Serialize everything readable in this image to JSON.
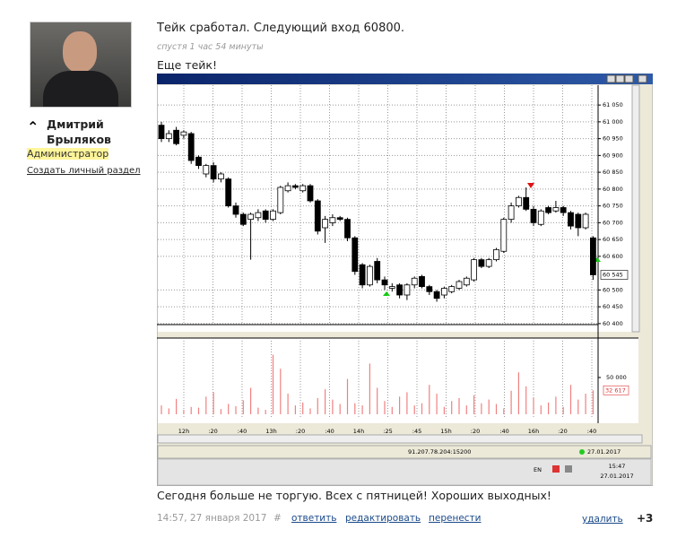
{
  "author": {
    "name": "Дмитрий Брыляков",
    "role": "Администратор",
    "link": "Создать личный раздел"
  },
  "post": {
    "title": "Тейк сработал. Следующий вход 60800.",
    "time_ago": "спустя 1 час 54 минуты",
    "text": "Еще тейк!",
    "text2": "Сегодня больше не торгую. Всех с пятницей! Хороших выходных!",
    "footer": {
      "date": "14:57, 27 января 2017",
      "anchor": "#",
      "reply": "ответить",
      "edit": "редактировать",
      "move": "перенести",
      "delete": "удалить",
      "rating": "+3"
    }
  },
  "chart_data": {
    "type": "candlestick",
    "open": [
      60990,
      60950,
      60975,
      60960,
      60965,
      60895,
      60845,
      60870,
      60830,
      60830,
      60750,
      60725,
      60710,
      60715,
      60735,
      60710,
      60730,
      60795,
      60810,
      60795,
      60810,
      60765,
      60685,
      60700,
      60715,
      60710,
      60655,
      60575,
      60515,
      60585,
      60530,
      60505,
      60515,
      60485,
      60515,
      60540,
      60510,
      60495,
      60485,
      60495,
      60505,
      60515,
      60530,
      60590,
      60570,
      60590,
      60615,
      60710,
      60750,
      60775,
      60740,
      60695,
      60745,
      60735,
      60745,
      60730,
      60725,
      60685,
      60655
    ],
    "high": [
      61000,
      60975,
      60985,
      60975,
      60970,
      60900,
      60875,
      60880,
      60850,
      60835,
      60760,
      60730,
      60730,
      60740,
      60740,
      60740,
      60810,
      60820,
      60815,
      60815,
      60815,
      60770,
      60720,
      60725,
      60720,
      60715,
      60660,
      60580,
      60575,
      60595,
      60540,
      60520,
      60520,
      60520,
      60540,
      60545,
      60515,
      60500,
      60510,
      60515,
      60530,
      60540,
      60595,
      60595,
      60595,
      60625,
      60715,
      60760,
      60780,
      60805,
      60750,
      60740,
      60750,
      60765,
      60750,
      60735,
      60730,
      60730,
      60660
    ],
    "low": [
      60940,
      60940,
      60930,
      60950,
      60875,
      60860,
      60835,
      60820,
      60820,
      60745,
      60715,
      60690,
      60590,
      60705,
      60700,
      60705,
      60725,
      60790,
      60800,
      60790,
      60760,
      60665,
      60640,
      60690,
      60705,
      60645,
      60545,
      60505,
      60510,
      60520,
      60500,
      60495,
      60475,
      60470,
      60505,
      60505,
      60485,
      60465,
      60475,
      60490,
      60500,
      60510,
      60525,
      60565,
      60565,
      60585,
      60610,
      60700,
      60745,
      60735,
      60690,
      60690,
      60725,
      60730,
      60720,
      60680,
      60660,
      60680,
      60530
    ],
    "close": [
      60950,
      60965,
      60935,
      60970,
      60885,
      60870,
      60870,
      60830,
      60845,
      60750,
      60725,
      60695,
      60725,
      60730,
      60710,
      60735,
      60805,
      60810,
      60805,
      60810,
      60765,
      60675,
      60710,
      60715,
      60710,
      60655,
      60555,
      60515,
      60570,
      60530,
      60515,
      60510,
      60485,
      60515,
      60535,
      60510,
      60495,
      60475,
      60505,
      60510,
      60525,
      60535,
      60590,
      60570,
      60590,
      60620,
      60710,
      60750,
      60775,
      60740,
      60700,
      60735,
      60730,
      60745,
      60730,
      60690,
      60685,
      60725,
      60545
    ],
    "volume": [
      12000,
      8000,
      21000,
      6000,
      10000,
      9000,
      24000,
      30000,
      7000,
      14000,
      11000,
      19000,
      36000,
      9000,
      6000,
      81000,
      62000,
      28000,
      12000,
      16000,
      8000,
      22000,
      34000,
      20000,
      14000,
      48000,
      15000,
      12000,
      69000,
      36000,
      18000,
      10000,
      24000,
      30000,
      12000,
      15000,
      40000,
      28000,
      10000,
      18000,
      22000,
      12000,
      26000,
      15000,
      20000,
      14000,
      8000,
      32000,
      57000,
      38000,
      22000,
      12000,
      16000,
      24000,
      10000,
      40000,
      20000,
      28000,
      32617
    ],
    "ylim": [
      60397,
      61109
    ],
    "yticks": [
      {
        "value": 61050,
        "label": "61 050"
      },
      {
        "value": 61000,
        "label": "61 000"
      },
      {
        "value": 60950,
        "label": "60 950"
      },
      {
        "value": 60900,
        "label": "60 900"
      },
      {
        "value": 60850,
        "label": "60 850"
      },
      {
        "value": 60800,
        "label": "60 800"
      },
      {
        "value": 60750,
        "label": "60 750"
      },
      {
        "value": 60700,
        "label": "60 700"
      },
      {
        "value": 60650,
        "label": "60 650"
      },
      {
        "value": 60600,
        "label": "60 600"
      },
      {
        "value": 60500,
        "label": "60 500"
      },
      {
        "value": 60450,
        "label": "60 450"
      },
      {
        "value": 60400,
        "label": "60 400"
      }
    ],
    "last_price": {
      "value": 60545,
      "label": "60 545"
    },
    "volume_ylim": [
      0,
      100000
    ],
    "volume_yticks": [
      {
        "value": 50000,
        "label": "50 000"
      }
    ],
    "last_volume": {
      "value": 32617,
      "label": "32 617"
    },
    "time_labels": [
      "12h",
      ":20",
      ":40",
      "13h",
      ":20",
      ":40",
      "14h",
      ":25",
      ":45",
      "15h",
      ":20",
      ":40",
      "16h",
      ":20",
      ":40"
    ]
  },
  "status": {
    "server": "91.207.78.204:15200",
    "date": "27.01.2017"
  },
  "taskbar": {
    "lang": "EN",
    "time": "15:47",
    "date": "27.01.2017"
  }
}
